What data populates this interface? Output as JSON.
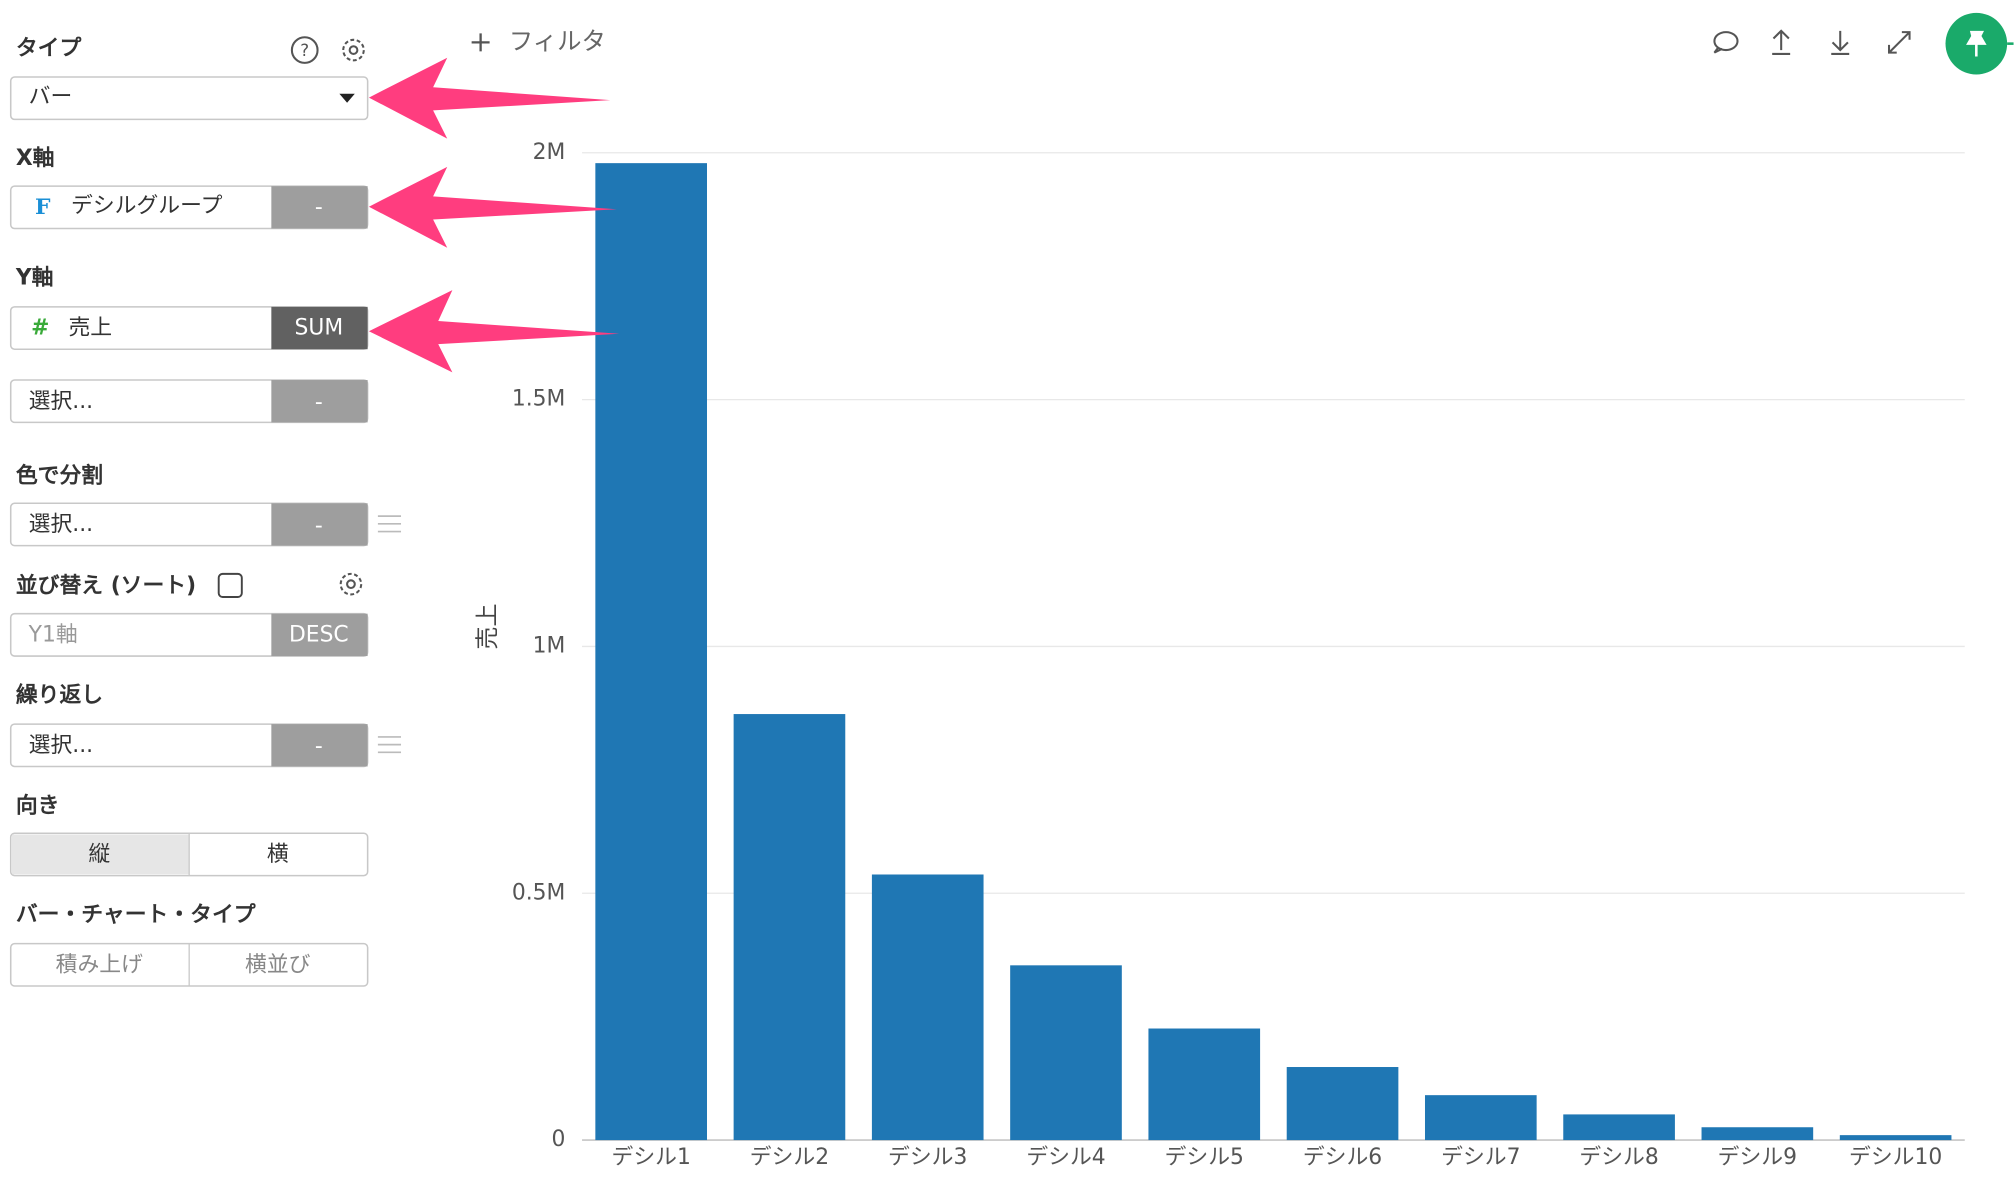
{
  "toolbar": {
    "filter": "フィルタ"
  },
  "sidebar": {
    "type": {
      "label": "タイプ",
      "value": "バー"
    },
    "x_axis": {
      "label": "X軸",
      "icon": "F",
      "field": "デシルグループ",
      "aggregate": "-"
    },
    "y_axis": {
      "label": "Y軸",
      "icon": "#",
      "field": "売上",
      "aggregate": "SUM",
      "extra_field": "選択...",
      "extra_aggregate": "-"
    },
    "color_split": {
      "label": "色で分割",
      "field": "選択...",
      "aggregate": "-"
    },
    "sort": {
      "label": "並び替え (ソート)",
      "field": "Y1軸",
      "order": "DESC"
    },
    "repeat": {
      "label": "繰り返し",
      "field": "選択...",
      "aggregate": "-"
    },
    "orientation": {
      "label": "向き",
      "options": [
        "縦",
        "横"
      ]
    },
    "bar_chart_type": {
      "label": "バー・チャート・タイプ",
      "options": [
        "積み上げ",
        "横並び"
      ]
    }
  },
  "chart_data": {
    "type": "bar",
    "y_label": "売上",
    "categories": [
      "デシル1",
      "デシル2",
      "デシル3",
      "デシル4",
      "デシル5",
      "デシル6",
      "デシル7",
      "デシル8",
      "デシル9",
      "デシル10"
    ],
    "values": [
      1979000,
      863000,
      538000,
      354000,
      226000,
      148000,
      91000,
      52000,
      26000,
      10000
    ],
    "color": "#1f77b4",
    "ylim": [
      0,
      2000000
    ],
    "yticks": [
      0,
      {
        "value": 500000,
        "label": "0.5M"
      },
      {
        "value": 1000000,
        "label": "1M"
      },
      {
        "value": 1500000,
        "label": "1.5M"
      },
      {
        "value": 2000000,
        "label": "2M"
      }
    ],
    "grid": true
  }
}
